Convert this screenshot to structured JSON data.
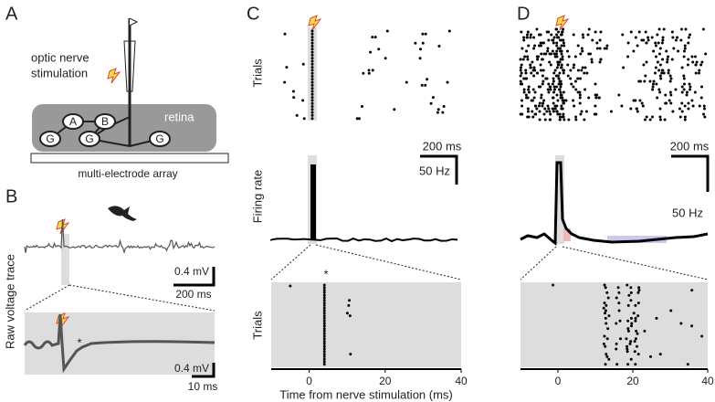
{
  "panel_labels": [
    "A",
    "B",
    "C",
    "D"
  ],
  "panel_a": {
    "stimulation_label": [
      "optic nerve",
      "stimulation"
    ],
    "retina_label": "retina",
    "cells": [
      "A",
      "B",
      "G",
      "G",
      "G"
    ],
    "array_label": "multi-electrode array"
  },
  "panel_b": {
    "y_label": "Raw voltage trace",
    "top_scale": {
      "y": "0.4 mV",
      "x": "200 ms"
    },
    "bottom_scale": {
      "y": "0.4 mV",
      "x": "10 ms"
    },
    "marker": "*"
  },
  "panel_c": {
    "raster_label": "Trials",
    "scale": {
      "x": "200 ms",
      "y": "50 Hz"
    },
    "rate_label": "Firing rate",
    "zoom_label": "Trials",
    "marker": "*",
    "xlim": [
      -10,
      40
    ],
    "xticks": [
      0,
      20,
      40
    ],
    "xlabel": "Time from nerve stimulation (ms)"
  },
  "panel_d": {
    "scale": {
      "x": "200 ms",
      "y": "50 Hz"
    },
    "xlim": [
      -10,
      40
    ],
    "xticks": [
      0,
      20,
      40
    ]
  }
}
